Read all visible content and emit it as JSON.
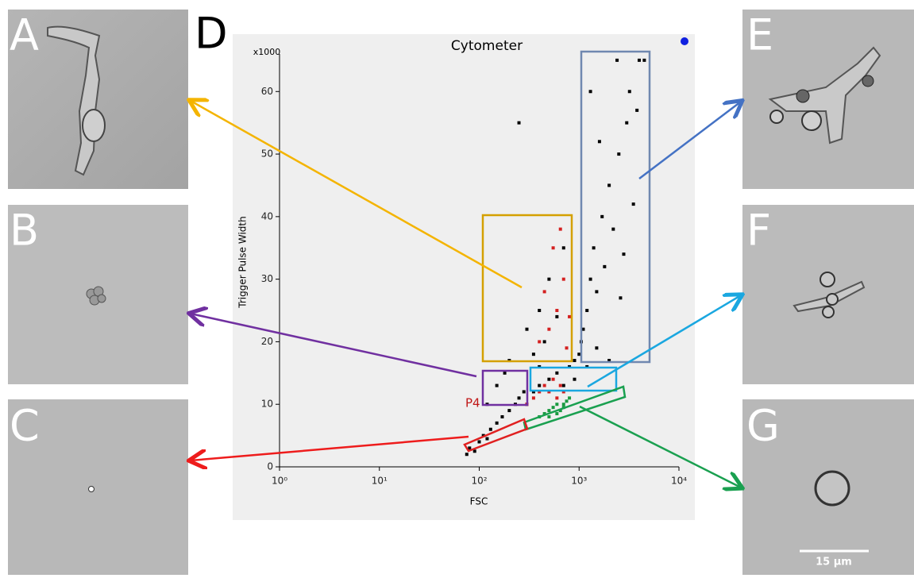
{
  "panel_labels": [
    "A",
    "B",
    "C",
    "E",
    "F",
    "G"
  ],
  "scale_bar": "15 µm",
  "chart_data": {
    "type": "scatter",
    "panel_label": "D",
    "title": "Cytometer",
    "x_label": "FSC",
    "y_label": "Trigger Pulse Width",
    "y_multiplier": "x1000",
    "gate_label": "P4",
    "log_x": true,
    "xlim": [
      1,
      10000
    ],
    "xticks": [
      {
        "value": 1,
        "label": "10⁰"
      },
      {
        "value": 10,
        "label": "10¹"
      },
      {
        "value": 100,
        "label": "10²"
      },
      {
        "value": 1000,
        "label": "10³"
      },
      {
        "value": 10000,
        "label": "10⁴"
      }
    ],
    "ylim": [
      0,
      66
    ],
    "yticks": [
      0,
      10,
      20,
      30,
      40,
      50,
      60
    ],
    "series": [
      {
        "color": "#000000",
        "x": [
          75,
          80,
          90,
          100,
          110,
          120,
          130,
          150,
          170,
          200,
          230,
          250,
          280,
          300,
          350,
          400,
          500,
          600,
          700,
          800,
          900,
          1000,
          1100,
          1200,
          1300,
          1400,
          1500,
          1700,
          2000,
          2200,
          2500,
          3000,
          3500,
          3200,
          1300,
          2400,
          4000,
          4500,
          1050,
          1500,
          1800,
          2600,
          3800,
          250,
          300,
          400,
          500,
          350,
          450,
          600,
          700,
          200,
          150,
          120,
          180,
          400,
          900,
          1200,
          2000,
          1600,
          2800
        ],
        "y": [
          2,
          3,
          2.5,
          4,
          5,
          4.5,
          6,
          7,
          8,
          9,
          10,
          11,
          12,
          10,
          12,
          13,
          14,
          15,
          13,
          16,
          17,
          18,
          22,
          25,
          30,
          35,
          28,
          40,
          45,
          38,
          50,
          55,
          42,
          60,
          60,
          65,
          65,
          65,
          20,
          19,
          32,
          27,
          57,
          55,
          22,
          25,
          30,
          18,
          20,
          24,
          35,
          17,
          13,
          10,
          15,
          16,
          14,
          16,
          17,
          52,
          34
        ]
      },
      {
        "color": "#d42020",
        "x": [
          300,
          350,
          400,
          450,
          500,
          550,
          600,
          650,
          700,
          400,
          500,
          600,
          700,
          550,
          650,
          450,
          750,
          800
        ],
        "y": [
          10,
          11,
          12,
          13,
          12,
          14,
          11,
          13,
          12,
          20,
          22,
          25,
          30,
          35,
          38,
          28,
          19,
          24
        ]
      },
      {
        "color": "#1a9a40",
        "x": [
          400,
          450,
          500,
          550,
          600,
          650,
          700,
          750,
          800,
          500,
          600,
          700
        ],
        "y": [
          8,
          8.5,
          9,
          9.5,
          10,
          9,
          10,
          10.5,
          11,
          8,
          8.5,
          9.5
        ]
      }
    ]
  }
}
